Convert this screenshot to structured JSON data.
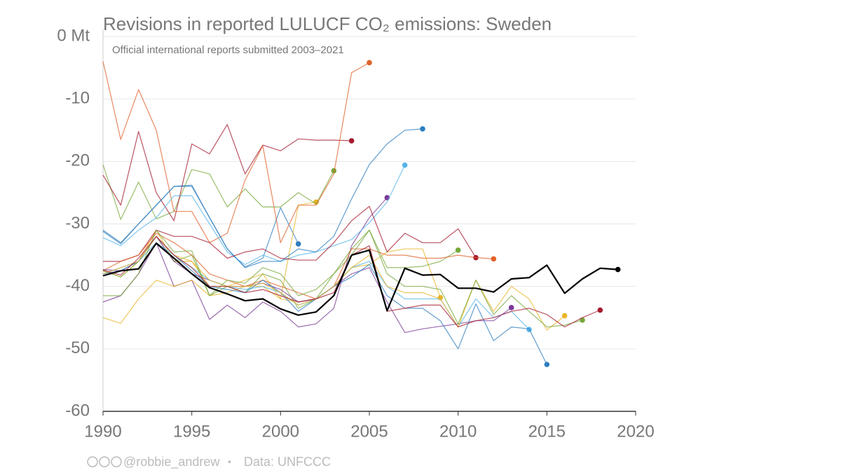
{
  "chart_data": {
    "type": "line",
    "title": "Revisions in reported LULUCF CO₂ emissions: Sweden",
    "subtitle": "Official international reports submitted 2003–2021",
    "footer": {
      "author": "@robbie_andrew",
      "separator": "•",
      "source": "Data: UNFCCC"
    },
    "x": [
      1990,
      1991,
      1992,
      1993,
      1994,
      1995,
      1996,
      1997,
      1998,
      1999,
      2000,
      2001,
      2002,
      2003,
      2004,
      2005,
      2006,
      2007,
      2008,
      2009,
      2010,
      2011,
      2012,
      2013,
      2014,
      2015,
      2016,
      2017,
      2018,
      2019
    ],
    "xlim": [
      1990,
      2020
    ],
    "xticks": [
      1990,
      1995,
      2000,
      2005,
      2010,
      2015,
      2020
    ],
    "ylim": [
      -60,
      0
    ],
    "yticks": [
      -60,
      -50,
      -40,
      -30,
      -20,
      -10,
      {
        "value": 0,
        "label": "0 Mt"
      }
    ],
    "grid": true,
    "series": [
      {
        "color": "#2e7dbf",
        "values": [
          -31.2,
          -33.2,
          -30,
          -27,
          -24,
          -23.8,
          -29,
          -34,
          -36.9,
          -35.5,
          -27.4,
          -33.2,
          null,
          null,
          null,
          null,
          null,
          null,
          null,
          null,
          null,
          null,
          null,
          null,
          null,
          null,
          null,
          null,
          null,
          null
        ]
      },
      {
        "color": "#e8b52a",
        "values": [
          -37.5,
          -38.5,
          -36,
          -31,
          -36,
          -36,
          -40,
          -40,
          -39,
          -38,
          -42,
          -27,
          -26.5,
          null,
          null,
          null,
          null,
          null,
          null,
          null,
          null,
          null,
          null,
          null,
          null,
          null,
          null,
          null,
          null,
          null
        ]
      },
      {
        "color": "#77a83a",
        "values": [
          -20.5,
          -29.3,
          -23.3,
          -29.2,
          -28,
          -21.3,
          -22,
          -27.3,
          -24.4,
          -27.3,
          -27.3,
          -25,
          -26.8,
          -21.5,
          null,
          null,
          null,
          null,
          null,
          null,
          null,
          null,
          null,
          null,
          null,
          null,
          null,
          null,
          null,
          null
        ]
      },
      {
        "color": "#a6192e",
        "values": [
          -22.2,
          -27,
          -15.2,
          -25,
          -29.5,
          -17.2,
          -18.8,
          -14.1,
          -22,
          -17.4,
          -18.3,
          -16.4,
          -16.6,
          -16.6,
          -16.7,
          null,
          null,
          null,
          null,
          null,
          null,
          null,
          null,
          null,
          null,
          null,
          null,
          null,
          null,
          null
        ]
      },
      {
        "color": "#e0622a",
        "values": [
          -4,
          -16.5,
          -8.5,
          -15,
          -28,
          -28,
          -33,
          -31.5,
          -23,
          -17.5,
          -33,
          -27,
          -27,
          -22,
          -5.8,
          -4.2,
          null,
          null,
          null,
          null,
          null,
          null,
          null,
          null,
          null,
          null,
          null,
          null,
          null,
          null
        ]
      },
      {
        "color": "#7b3a96",
        "values": [
          -42.5,
          -41.5,
          -38,
          -33,
          -40,
          -39,
          -45.3,
          -43,
          -45,
          -42.5,
          -44,
          -46.5,
          -46,
          -43.5,
          -33.5,
          -29,
          -25.8,
          null,
          null,
          null,
          null,
          null,
          null,
          null,
          null,
          null,
          null,
          null,
          null,
          null
        ]
      },
      {
        "color": "#56b4e9",
        "values": [
          -32.2,
          -33.5,
          -31,
          -29,
          -25.5,
          -25.5,
          -30,
          -34.5,
          -36.5,
          -35,
          -36,
          -35,
          -34.5,
          -33.5,
          -32.5,
          -29.8,
          -26.5,
          -20.6,
          null,
          null,
          null,
          null,
          null,
          null,
          null,
          null,
          null,
          null,
          null,
          null
        ]
      },
      {
        "color": "#2e7dbf",
        "values": [
          -31,
          -33,
          -30,
          -27,
          -24,
          -24,
          -29,
          -34,
          -37,
          -36,
          -36,
          -34,
          -34.5,
          -32,
          -26,
          -20.5,
          -17.2,
          -15,
          -14.8,
          null,
          null,
          null,
          null,
          null,
          null,
          null,
          null,
          null,
          null,
          null
        ]
      },
      {
        "color": "#e8b52a",
        "values": [
          -45,
          -45.9,
          -42,
          -39,
          -40,
          -39,
          -41.5,
          -41,
          -40,
          -40,
          -42,
          -42.5,
          -42,
          -40,
          -37,
          -36.5,
          -34.5,
          -34,
          -34,
          -41.8,
          null,
          null,
          null,
          null,
          null,
          null,
          null,
          null,
          null,
          null
        ]
      },
      {
        "color": "#77a83a",
        "values": [
          -37.5,
          -38.5,
          -36,
          -32,
          -36,
          -35,
          -41.5,
          -40,
          -41,
          -38,
          -39,
          -43.5,
          -42,
          -38,
          -34,
          -31,
          -37,
          -37,
          -36.8,
          -36,
          -34.2,
          null,
          null,
          null,
          null,
          null,
          null,
          null,
          null,
          null
        ]
      },
      {
        "color": "#a6192e",
        "values": [
          -36,
          -36,
          -35,
          -31,
          -32,
          -32,
          -33,
          -35.5,
          -34.5,
          -34,
          -35.5,
          -35.8,
          -35.8,
          -33,
          -29.5,
          -27.2,
          -34.5,
          -31.5,
          -33,
          -33,
          -30.8,
          -35.4,
          null,
          null,
          null,
          null,
          null,
          null,
          null,
          null
        ]
      },
      {
        "color": "#e0622a",
        "values": [
          -37.5,
          -36,
          -35,
          -31.5,
          -33,
          -35,
          -38,
          -39,
          -40,
          -39,
          -40,
          -41,
          -42,
          -40,
          -34,
          -34,
          -35,
          -35,
          -35.5,
          -35.5,
          -35,
          -35.4,
          -35.6,
          null,
          null,
          null,
          null,
          null,
          null,
          null
        ]
      },
      {
        "color": "#7b3a96",
        "values": [
          -37.3,
          -37.5,
          -36,
          -32,
          -36,
          -38,
          -39,
          -40,
          -40,
          -39.5,
          -40.5,
          -42.5,
          -42,
          -40,
          -38,
          -37,
          -42.5,
          -47.4,
          -46.8,
          -46.4,
          -46,
          -45.5,
          -45.5,
          -43.4,
          null,
          null,
          null,
          null,
          null,
          null
        ]
      },
      {
        "color": "#56b4e9",
        "values": [
          -38,
          -37,
          -36,
          -33,
          -35,
          -37,
          -39,
          -40,
          -40.5,
          -40,
          -41,
          -43,
          -42,
          -40,
          -37,
          -36,
          -40,
          -42,
          -42,
          -42,
          -46.5,
          -42,
          -45,
          -44,
          -46.9,
          null,
          null,
          null,
          null,
          null
        ]
      },
      {
        "color": "#2e7dbf",
        "values": [
          -38,
          -37.5,
          -36,
          -32,
          -35,
          -37.5,
          -40,
          -40.5,
          -41,
          -39,
          -41,
          -44,
          -42,
          -40,
          -38.5,
          -36.5,
          -41.5,
          -43.5,
          -43.5,
          -45.5,
          -50,
          -42.8,
          -48.7,
          -46.5,
          -46.8,
          -52.5,
          null,
          null,
          null,
          null
        ]
      },
      {
        "color": "#e8b52a",
        "values": [
          -38,
          -37,
          -36,
          -32,
          -35,
          -36,
          -39,
          -40,
          -40,
          -39.5,
          -41,
          -43,
          -42,
          -40,
          -37,
          -35,
          -40,
          -41,
          -41,
          -42,
          -46.5,
          -39,
          -44,
          -40,
          -42,
          -47,
          -44.7,
          null,
          null,
          null
        ]
      },
      {
        "color": "#77a83a",
        "values": [
          -41.5,
          -41.5,
          -38,
          -31,
          -34.5,
          -34.3,
          -41.5,
          -39,
          -39.5,
          -37,
          -38,
          -41.5,
          -40.5,
          -38,
          -35,
          -31,
          -38,
          -40,
          -40,
          -40.5,
          -46,
          -39,
          -44.5,
          -41.5,
          -44,
          -46.5,
          -46.2,
          -45.4,
          null,
          null
        ]
      },
      {
        "color": "#a6192e",
        "values": [
          -37.4,
          -38.2,
          -35.5,
          -32,
          -35,
          -37,
          -40,
          -40,
          -41,
          -40.5,
          -41.5,
          -42.5,
          -42,
          -41,
          -35,
          -33.5,
          -44,
          -43.5,
          -43,
          -43,
          -46.5,
          -45.5,
          -45,
          -44,
          -43.5,
          -44.5,
          -46.5,
          -45,
          -43.8,
          null
        ]
      },
      {
        "color": "#000000",
        "values": [
          -38.3,
          -37.5,
          -37.2,
          -33.1,
          -35.5,
          -38,
          -40.2,
          -41.2,
          -42.3,
          -42,
          -43.6,
          -44.6,
          -44.1,
          -41.5,
          -35,
          -34.2,
          -43.9,
          -37.1,
          -38.2,
          -38.1,
          -40.3,
          -40.3,
          -40.9,
          -38.8,
          -38.6,
          -36.6,
          -41.1,
          -38.8,
          -37.1,
          -37.3
        ]
      }
    ]
  }
}
